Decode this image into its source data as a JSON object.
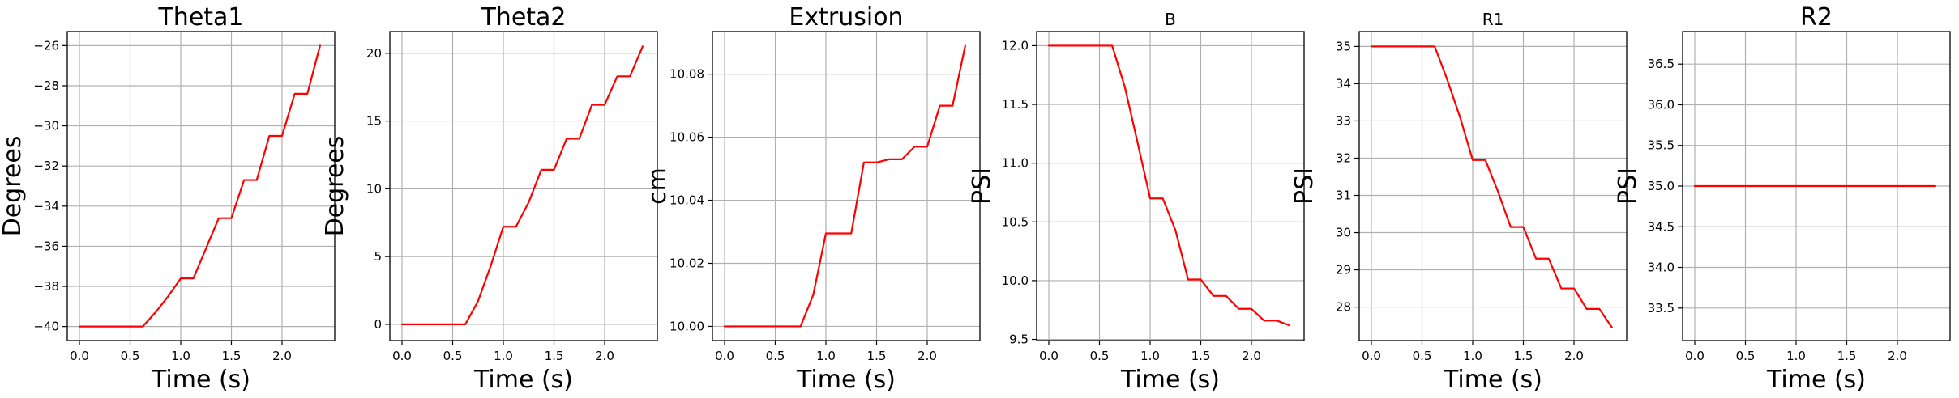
{
  "chart_data": [
    {
      "type": "line",
      "title": "Theta1",
      "xlabel": "Time (s)",
      "ylabel": "Degrees",
      "grid": true,
      "xlim": [
        -0.12,
        2.52
      ],
      "ylim": [
        -40.7,
        -25.3
      ],
      "xticks": [
        0.0,
        0.5,
        1.0,
        1.5,
        2.0
      ],
      "xtick_labels": [
        "0.0",
        "0.5",
        "1.0",
        "1.5",
        "2.0"
      ],
      "yticks": [
        -40,
        -38,
        -36,
        -34,
        -32,
        -30,
        -28,
        -26
      ],
      "ytick_labels": [
        "−40",
        "−38",
        "−36",
        "−34",
        "−32",
        "−30",
        "−28",
        "−26"
      ],
      "series": [
        {
          "color": "#ff0000",
          "x": [
            0.0,
            0.125,
            0.25,
            0.375,
            0.5,
            0.625,
            0.75,
            0.875,
            1.0,
            1.125,
            1.25,
            1.375,
            1.5,
            1.625,
            1.75,
            1.875,
            2.0,
            2.125,
            2.25,
            2.375
          ],
          "y": [
            -40,
            -40,
            -40,
            -40,
            -40,
            -40,
            -39.3,
            -38.5,
            -37.6,
            -37.6,
            -36.1,
            -34.6,
            -34.6,
            -32.7,
            -32.7,
            -30.5,
            -30.5,
            -28.4,
            -28.4,
            -26.0
          ]
        }
      ]
    },
    {
      "type": "line",
      "title": "Theta2",
      "xlabel": "Time (s)",
      "ylabel": "Degrees",
      "grid": true,
      "xlim": [
        -0.12,
        2.52
      ],
      "ylim": [
        -1.2,
        21.6
      ],
      "xticks": [
        0.0,
        0.5,
        1.0,
        1.5,
        2.0
      ],
      "xtick_labels": [
        "0.0",
        "0.5",
        "1.0",
        "1.5",
        "2.0"
      ],
      "yticks": [
        0,
        5,
        10,
        15,
        20
      ],
      "ytick_labels": [
        "0",
        "5",
        "10",
        "15",
        "20"
      ],
      "series": [
        {
          "color": "#ff0000",
          "x": [
            0.0,
            0.125,
            0.25,
            0.375,
            0.5,
            0.625,
            0.75,
            0.875,
            1.0,
            1.125,
            1.25,
            1.375,
            1.5,
            1.625,
            1.75,
            1.875,
            2.0,
            2.125,
            2.25,
            2.375
          ],
          "y": [
            0,
            0,
            0,
            0,
            0,
            0,
            1.7,
            4.3,
            7.2,
            7.2,
            9.0,
            11.4,
            11.4,
            13.7,
            13.7,
            16.2,
            16.2,
            18.3,
            18.3,
            20.5
          ]
        }
      ]
    },
    {
      "type": "line",
      "title": "Extrusion",
      "xlabel": "Time (s)",
      "ylabel": "cm",
      "grid": true,
      "xlim": [
        -0.12,
        2.52
      ],
      "ylim": [
        9.9955,
        10.0935
      ],
      "xticks": [
        0.0,
        0.5,
        1.0,
        1.5,
        2.0
      ],
      "xtick_labels": [
        "0.0",
        "0.5",
        "1.0",
        "1.5",
        "2.0"
      ],
      "yticks": [
        10.0,
        10.02,
        10.04,
        10.06,
        10.08
      ],
      "ytick_labels": [
        "10.00",
        "10.02",
        "10.04",
        "10.06",
        "10.08"
      ],
      "series": [
        {
          "color": "#ff0000",
          "x": [
            0.0,
            0.125,
            0.25,
            0.375,
            0.5,
            0.625,
            0.75,
            0.875,
            1.0,
            1.125,
            1.25,
            1.375,
            1.5,
            1.625,
            1.75,
            1.875,
            2.0,
            2.125,
            2.25,
            2.375
          ],
          "y": [
            10.0,
            10.0,
            10.0,
            10.0,
            10.0,
            10.0,
            10.0,
            10.01,
            10.0295,
            10.0295,
            10.0295,
            10.052,
            10.052,
            10.053,
            10.053,
            10.057,
            10.057,
            10.07,
            10.07,
            10.089
          ]
        }
      ]
    },
    {
      "type": "line",
      "title": "B",
      "xlabel": "Time (s)",
      "ylabel": "PSI",
      "grid": true,
      "xlim": [
        -0.12,
        2.52
      ],
      "ylim": [
        9.49,
        12.12
      ],
      "xticks": [
        0.0,
        0.5,
        1.0,
        1.5,
        2.0
      ],
      "xtick_labels": [
        "0.0",
        "0.5",
        "1.0",
        "1.5",
        "2.0"
      ],
      "yticks": [
        9.5,
        10.0,
        10.5,
        11.0,
        11.5,
        12.0
      ],
      "ytick_labels": [
        "9.5",
        "10.0",
        "10.5",
        "11.0",
        "11.5",
        "12.0"
      ],
      "series": [
        {
          "color": "#ff0000",
          "x": [
            0.0,
            0.125,
            0.25,
            0.375,
            0.5,
            0.625,
            0.75,
            0.875,
            1.0,
            1.125,
            1.25,
            1.375,
            1.5,
            1.625,
            1.75,
            1.875,
            2.0,
            2.125,
            2.25,
            2.375
          ],
          "y": [
            12.0,
            12.0,
            12.0,
            12.0,
            12.0,
            12.0,
            11.65,
            11.18,
            10.7,
            10.7,
            10.43,
            10.01,
            10.01,
            9.87,
            9.87,
            9.76,
            9.76,
            9.66,
            9.66,
            9.62
          ]
        }
      ]
    },
    {
      "type": "line",
      "title": "R1",
      "xlabel": "Time (s)",
      "ylabel": "PSI",
      "grid": true,
      "xlim": [
        -0.12,
        2.52
      ],
      "ylim": [
        27.1,
        35.4
      ],
      "xticks": [
        0.0,
        0.5,
        1.0,
        1.5,
        2.0
      ],
      "xtick_labels": [
        "0.0",
        "0.5",
        "1.0",
        "1.5",
        "2.0"
      ],
      "yticks": [
        28,
        29,
        30,
        31,
        32,
        33,
        34,
        35
      ],
      "ytick_labels": [
        "28",
        "29",
        "30",
        "31",
        "32",
        "33",
        "34",
        "35"
      ],
      "series": [
        {
          "color": "#ff0000",
          "x": [
            0.0,
            0.125,
            0.25,
            0.375,
            0.5,
            0.625,
            0.75,
            0.875,
            1.0,
            1.125,
            1.25,
            1.375,
            1.5,
            1.625,
            1.75,
            1.875,
            2.0,
            2.125,
            2.25,
            2.375
          ],
          "y": [
            35.0,
            35.0,
            35.0,
            35.0,
            35.0,
            35.0,
            34.1,
            33.1,
            31.95,
            31.95,
            31.1,
            30.15,
            30.15,
            29.3,
            29.3,
            28.5,
            28.5,
            27.95,
            27.95,
            27.45
          ]
        }
      ]
    },
    {
      "type": "line",
      "title": "R2",
      "xlabel": "Time (s)",
      "ylabel": "PSI",
      "grid": true,
      "xlim": [
        -0.12,
        2.52
      ],
      "ylim": [
        33.1,
        36.9
      ],
      "xticks": [
        0.0,
        0.5,
        1.0,
        1.5,
        2.0
      ],
      "xtick_labels": [
        "0.0",
        "0.5",
        "1.0",
        "1.5",
        "2.0"
      ],
      "yticks": [
        33.5,
        34.0,
        34.5,
        35.0,
        35.5,
        36.0,
        36.5
      ],
      "ytick_labels": [
        "33.5",
        "34.0",
        "34.5",
        "35.0",
        "35.5",
        "36.0",
        "36.5"
      ],
      "series": [
        {
          "color": "#ff0000",
          "x": [
            0.0,
            2.375
          ],
          "y": [
            35.0,
            35.0
          ]
        }
      ]
    }
  ]
}
